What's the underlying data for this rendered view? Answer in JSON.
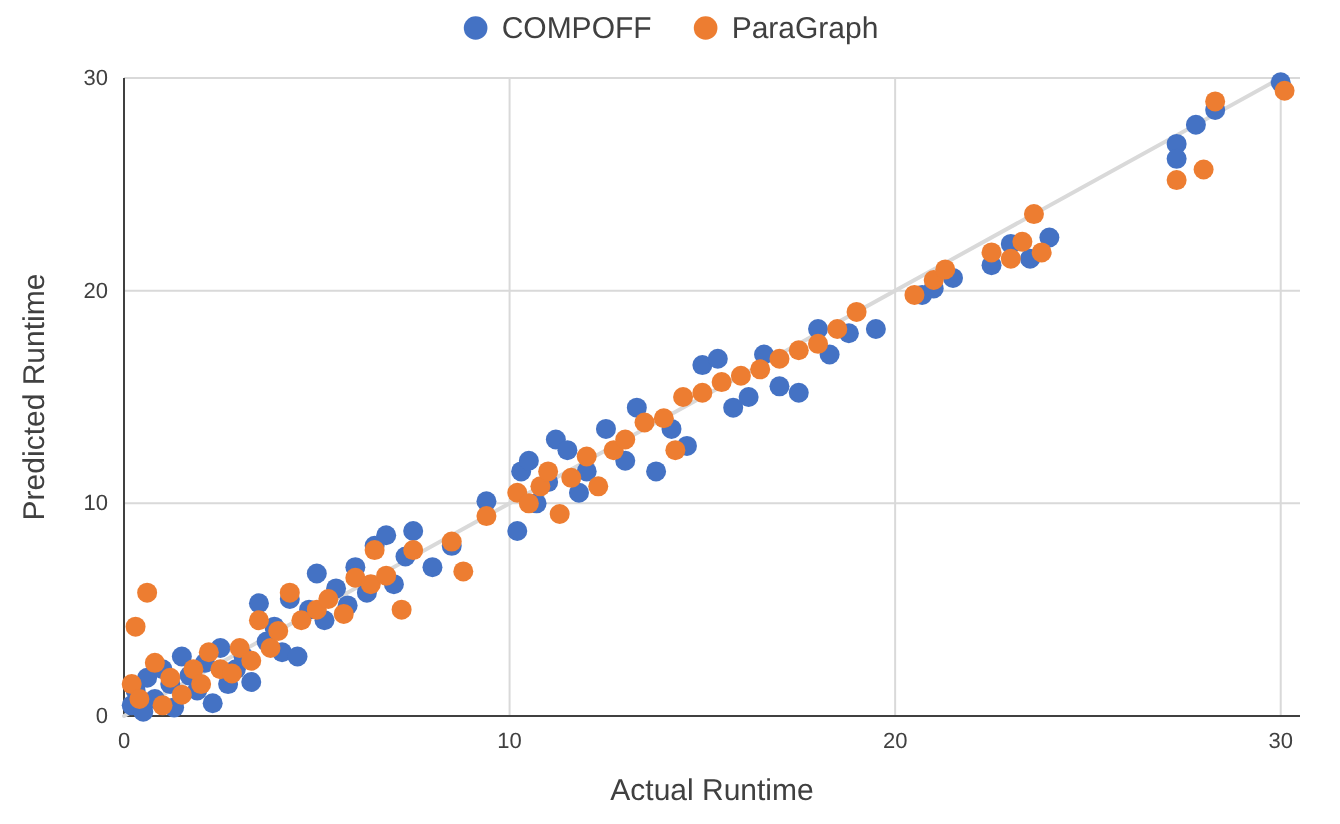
{
  "chart_data": {
    "type": "scatter",
    "xlabel": "Actual Runtime",
    "ylabel": "Predicted Runtime",
    "xlim": [
      0,
      30.5
    ],
    "ylim": [
      0,
      30
    ],
    "xticks": [
      0,
      10,
      20,
      30
    ],
    "yticks": [
      0,
      10,
      20,
      30
    ],
    "grid": true,
    "legend": "top",
    "marker": "circle",
    "series": [
      {
        "type": "line",
        "marker": "none",
        "color": "#d9d9d9",
        "x": [
          0,
          30
        ],
        "values": [
          0,
          30
        ]
      },
      {
        "name": "COMPOFF",
        "color": "#4472c4",
        "x": [
          0.2,
          0.3,
          0.5,
          0.6,
          0.8,
          1,
          1.2,
          1.3,
          1.5,
          1.7,
          1.9,
          2.1,
          2.3,
          2.5,
          2.7,
          2.9,
          3.1,
          3.3,
          3.5,
          3.7,
          3.9,
          4.1,
          4.3,
          4.5,
          4.8,
          5,
          5.2,
          5.5,
          5.8,
          6,
          6.3,
          6.5,
          6.8,
          7,
          7.3,
          7.5,
          8,
          8.5,
          9.4,
          10.2,
          10.3,
          10.5,
          10.7,
          11,
          11.2,
          11.5,
          11.8,
          12,
          12.5,
          13,
          13.3,
          13.8,
          14.2,
          14.6,
          15,
          15.4,
          15.8,
          16.2,
          16.6,
          17,
          17.5,
          18,
          18.3,
          18.8,
          19.5,
          20.7,
          21,
          21.5,
          22.5,
          23,
          23.5,
          24,
          27.3,
          27.3,
          27.8,
          28.3,
          30
        ],
        "values": [
          0.5,
          1.2,
          0.2,
          1.8,
          0.8,
          2.2,
          1.5,
          0.4,
          2.8,
          1.9,
          1.2,
          2.5,
          0.6,
          3.2,
          1.5,
          2.2,
          2.8,
          1.6,
          5.3,
          3.5,
          4.2,
          3,
          5.5,
          2.8,
          5,
          6.7,
          4.5,
          6,
          5.2,
          7,
          5.8,
          8,
          8.5,
          6.2,
          7.5,
          8.7,
          7,
          8,
          10.1,
          8.7,
          11.5,
          12,
          10,
          11,
          13,
          12.5,
          10.5,
          11.5,
          13.5,
          12,
          14.5,
          11.5,
          13.5,
          12.7,
          16.5,
          16.8,
          14.5,
          15,
          17,
          15.5,
          15.2,
          18.2,
          17,
          18,
          18.2,
          19.8,
          20.1,
          20.6,
          21.2,
          22.2,
          21.5,
          22.5,
          26.9,
          26.2,
          27.8,
          28.5,
          29.8
        ]
      },
      {
        "name": "ParaGraph",
        "color": "#ed7d31",
        "x": [
          0.2,
          0.3,
          0.4,
          0.6,
          0.8,
          1,
          1.2,
          1.5,
          1.8,
          2,
          2.2,
          2.5,
          2.8,
          3,
          3.3,
          3.5,
          3.8,
          4,
          4.3,
          4.6,
          5,
          5.3,
          5.7,
          6,
          6.4,
          6.5,
          6.8,
          7.2,
          7.5,
          8.5,
          8.8,
          9.4,
          10.2,
          10.5,
          10.8,
          11,
          11.3,
          11.6,
          12,
          12.3,
          12.7,
          13,
          13.5,
          14,
          14.3,
          14.5,
          15,
          15.5,
          16,
          16.5,
          17,
          17.5,
          18,
          18.5,
          19,
          20.5,
          21,
          21.3,
          22.5,
          23,
          23.3,
          23.6,
          23.8,
          27.3,
          28,
          28.3,
          30.1
        ],
        "values": [
          1.5,
          4.2,
          0.8,
          5.8,
          2.5,
          0.5,
          1.8,
          1,
          2.2,
          1.5,
          3,
          2.2,
          2,
          3.2,
          2.6,
          4.5,
          3.2,
          4,
          5.8,
          4.5,
          5,
          5.5,
          4.8,
          6.5,
          6.2,
          7.8,
          6.6,
          5,
          7.8,
          8.2,
          6.8,
          9.4,
          10.5,
          10,
          10.8,
          11.5,
          9.5,
          11.2,
          12.2,
          10.8,
          12.5,
          13,
          13.8,
          14,
          12.5,
          15,
          15.2,
          15.7,
          16,
          16.3,
          16.8,
          17.2,
          17.5,
          18.2,
          19,
          19.8,
          20.5,
          21,
          21.8,
          21.5,
          22.3,
          23.6,
          21.8,
          25.2,
          25.7,
          28.9,
          29.4
        ]
      }
    ]
  }
}
